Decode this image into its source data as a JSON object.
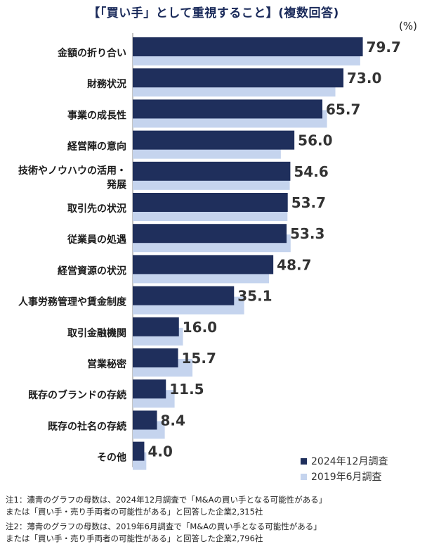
{
  "header": {
    "title": "【「買い手」として重視すること】(複数回答)",
    "unit": "(%)"
  },
  "colors": {
    "series_2024": "#1f2f5c",
    "series_2019": "#c5d4ee"
  },
  "legend": {
    "items": [
      {
        "label": "2024年12月調査"
      },
      {
        "label": "2019年6月調査"
      }
    ]
  },
  "notes": [
    {
      "line1": "注1：濃青のグラフの母数は、2024年12月調査で「M&Aの買い手となる可能性がある」",
      "line2": "または「買い手・売り手両者の可能性がある」と回答した企業2,315社"
    },
    {
      "line1": "注2：薄青のグラフの母数は、2019年6月調査で「M&Aの買い手となる可能性がある」",
      "line2": "または「買い手・売り手両者の可能性がある」と回答した企業2,796社"
    }
  ],
  "chart_data": {
    "type": "bar",
    "orientation": "horizontal",
    "title": "【「買い手」として重視すること】(複数回答)",
    "unit": "(%)",
    "categories": [
      "金額の折り合い",
      "財務状況",
      "事業の成長性",
      "経営陣の意向",
      "技術やノウハウの活用・発展",
      "取引先の状況",
      "従業員の処遇",
      "経営資源の状況",
      "人事労務管理や賃金制度",
      "取引金融機関",
      "営業秘密",
      "既存のブランドの存続",
      "既存の社名の存続",
      "その他"
    ],
    "category_lines": [
      [
        "金額の折り合い"
      ],
      [
        "財務状況"
      ],
      [
        "事業の成長性"
      ],
      [
        "経営陣の意向"
      ],
      [
        "技術やノウハウの活用・",
        "発展"
      ],
      [
        "取引先の状況"
      ],
      [
        "従業員の処遇"
      ],
      [
        "経営資源の状況"
      ],
      [
        "人事労務管理や賃金制度"
      ],
      [
        "取引金融機関"
      ],
      [
        "営業秘密"
      ],
      [
        "既存のブランドの存続"
      ],
      [
        "既存の社名の存続"
      ],
      [
        "その他"
      ]
    ],
    "series": [
      {
        "name": "2024年12月調査",
        "values": [
          79.7,
          73.0,
          65.7,
          56.0,
          54.6,
          53.7,
          53.3,
          48.7,
          35.1,
          16.0,
          15.7,
          11.5,
          8.4,
          4.0
        ]
      },
      {
        "name": "2019年6月調査",
        "values": [
          78.8,
          70.2,
          67.3,
          51.3,
          54.4,
          53.6,
          54.7,
          47.2,
          38.6,
          17.4,
          20.7,
          14.5,
          11.1,
          4.7
        ]
      }
    ],
    "value_labels": [
      "79.7",
      "73.0",
      "65.7",
      "56.0",
      "54.6",
      "53.7",
      "53.3",
      "48.7",
      "35.1",
      "16.0",
      "15.7",
      "11.5",
      "8.4",
      "4.0"
    ],
    "xlim": [
      0,
      100
    ],
    "grid": false,
    "legend_position": "bottom-right"
  }
}
